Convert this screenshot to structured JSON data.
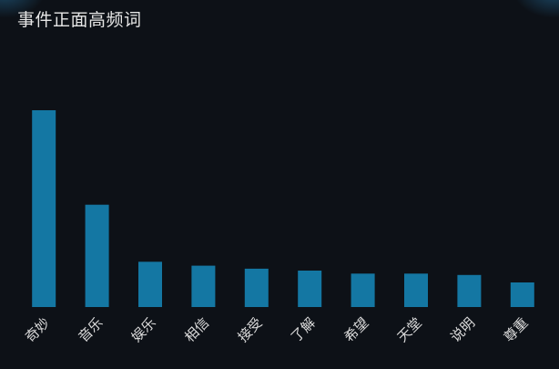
{
  "chart_data": {
    "type": "bar",
    "title": "事件正面高频词",
    "categories": [
      "奇妙",
      "音乐",
      "娱乐",
      "相信",
      "接受",
      "了解",
      "希望",
      "天堂",
      "说明",
      "尊重"
    ],
    "values": [
      100,
      52,
      23,
      21,
      19.5,
      18.5,
      17,
      17,
      16.3,
      12.5
    ],
    "ylim": [
      0,
      100
    ],
    "grid": false,
    "legend": "none",
    "bar_color": "#1477a3"
  },
  "colors": {
    "background": "#0d1117",
    "text": "#e6e6e6"
  }
}
